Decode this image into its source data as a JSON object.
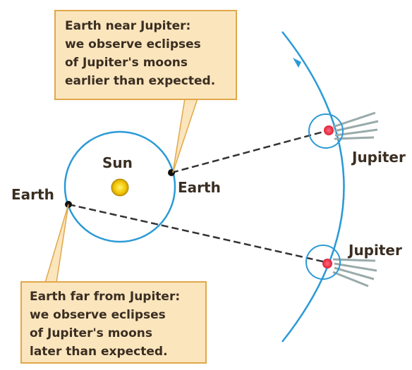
{
  "callouts": [
    {
      "lines": [
        "Earth near Jupiter:",
        "we observe eclipses",
        "of Jupiter's moons",
        "earlier than expected."
      ]
    },
    {
      "lines": [
        "Earth far from Jupiter:",
        "we observe eclipses",
        "of Jupiter's moons",
        "later than expected."
      ]
    }
  ],
  "labels": {
    "sun": "Sun",
    "earth_near": "Earth",
    "earth_far": "Earth",
    "jupiter_near": "Jupiter",
    "jupiter_far": "Jupiter"
  }
}
